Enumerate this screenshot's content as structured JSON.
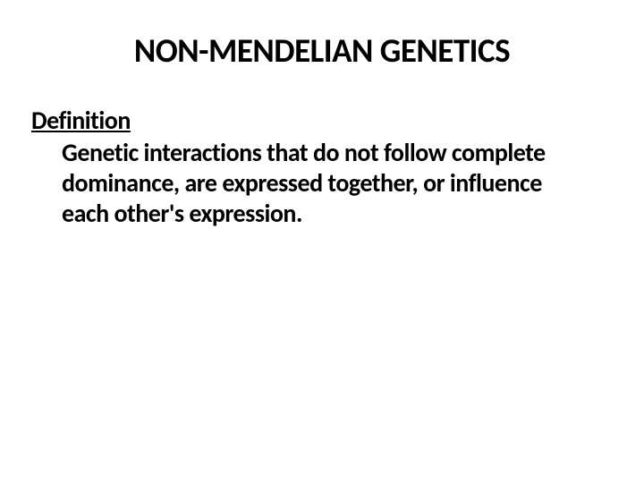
{
  "slide": {
    "title": "NON-MENDELIAN GENETICS",
    "subtitle": "Definition",
    "body": "Genetic interactions that do not follow complete dominance, are expressed together, or influence each other's expression.",
    "background_color": "#ffffff",
    "text_color": "#000000",
    "title_fontsize": 37,
    "subtitle_fontsize": 28,
    "body_fontsize": 28,
    "font_family": "Calibri, Arial, sans-serif"
  }
}
